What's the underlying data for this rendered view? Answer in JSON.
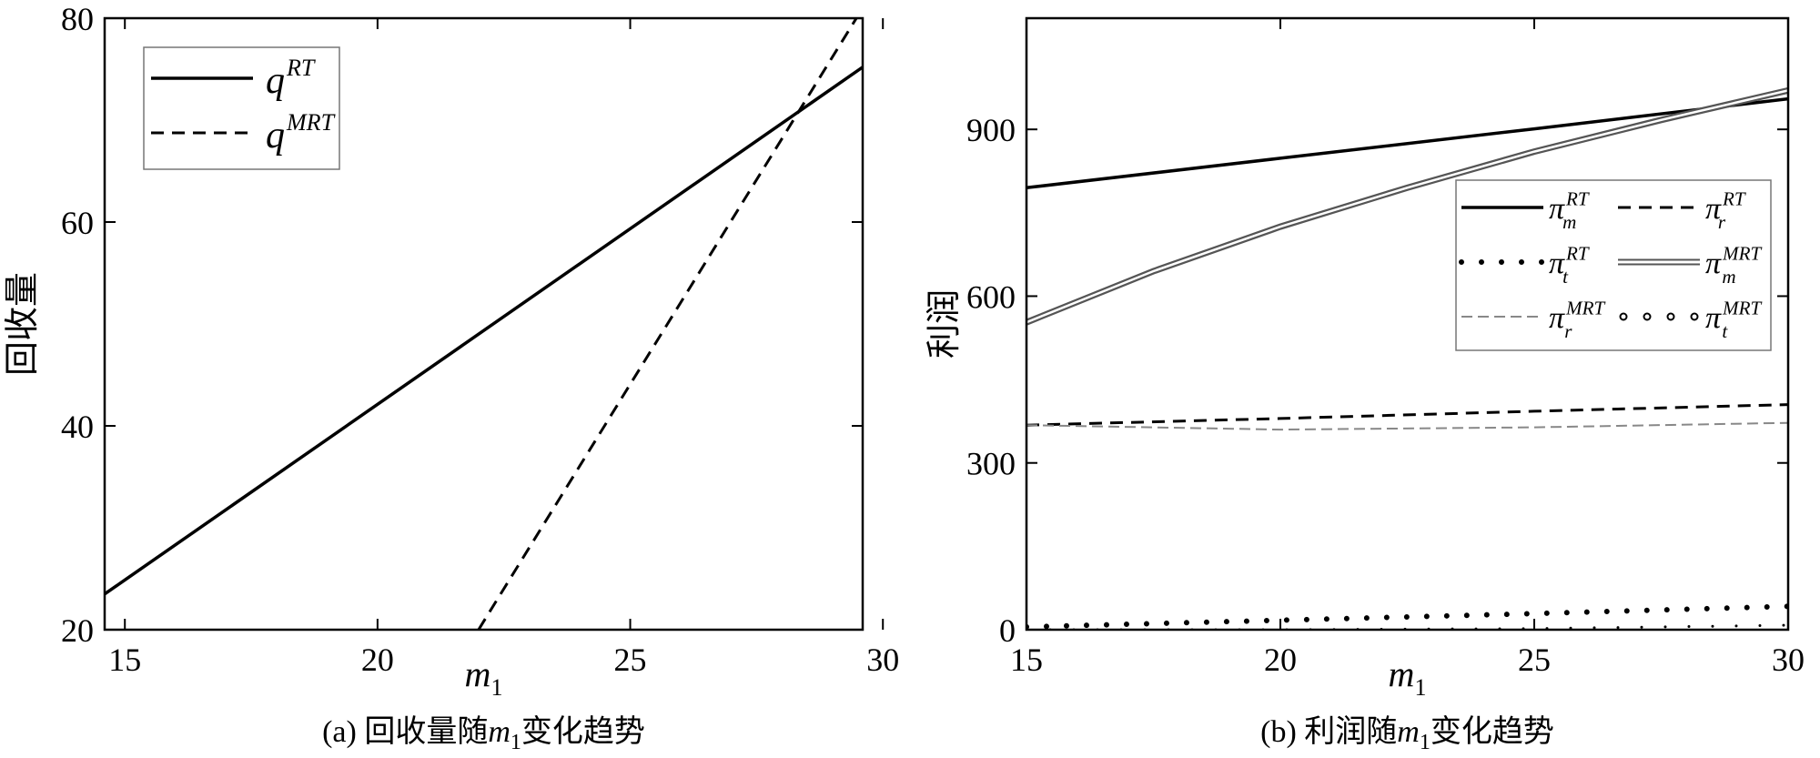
{
  "chart_data": [
    {
      "id": "a",
      "type": "line",
      "caption": "(a) 回收量随m1变化趋势",
      "xlabel": "m1",
      "ylabel": "回收量",
      "xlim": [
        14.6,
        29.6
      ],
      "ylim": [
        20,
        80
      ],
      "xticks": [
        15,
        20,
        25,
        30
      ],
      "yticks": [
        20,
        40,
        60,
        80
      ],
      "legend_position": "top-left",
      "grid": false,
      "series": [
        {
          "name": "q^RT",
          "base": "q",
          "sup": "RT",
          "style": "solid",
          "color": "#000000",
          "x": [
            14.6,
            29.6
          ],
          "y": [
            23.5,
            75.2
          ]
        },
        {
          "name": "q^MRT",
          "base": "q",
          "sup": "MRT",
          "style": "dashed",
          "color": "#000000",
          "x": [
            22.0,
            29.6
          ],
          "y": [
            20.0,
            81.0
          ]
        }
      ]
    },
    {
      "id": "b",
      "type": "line",
      "caption": "(b) 利润随m1变化趋势",
      "xlabel": "m1",
      "ylabel": "利润",
      "xlim": [
        15,
        30
      ],
      "ylim": [
        0,
        1100
      ],
      "xticks": [
        15,
        20,
        25,
        30
      ],
      "yticks": [
        0,
        300,
        600,
        900
      ],
      "legend_position": "right",
      "grid": false,
      "series": [
        {
          "name": "π_m^RT",
          "base": "π",
          "sub": "m",
          "sup": "RT",
          "style": "solid",
          "color": "#000000",
          "x": [
            15,
            20,
            25,
            30
          ],
          "y": [
            795,
            848,
            901,
            955
          ]
        },
        {
          "name": "π_r^RT",
          "base": "π",
          "sub": "r",
          "sup": "RT",
          "style": "dashed",
          "color": "#000000",
          "x": [
            15,
            20,
            25,
            30
          ],
          "y": [
            368,
            380,
            393,
            405
          ]
        },
        {
          "name": "π_t^RT",
          "base": "π",
          "sub": "t",
          "sup": "RT",
          "style": "dotted",
          "color": "#000000",
          "x": [
            15,
            20,
            25,
            30
          ],
          "y": [
            5,
            17,
            29,
            42
          ]
        },
        {
          "name": "π_m^MRT",
          "base": "π",
          "sub": "m",
          "sup": "MRT",
          "style": "double",
          "color": "#555555",
          "x": [
            15,
            17.5,
            20,
            22.5,
            25,
            27.5,
            30
          ],
          "y": [
            553,
            645,
            725,
            795,
            860,
            917,
            970
          ]
        },
        {
          "name": "π_r^MRT",
          "base": "π",
          "sub": "r",
          "sup": "MRT",
          "style": "dashed-gray",
          "color": "#888888",
          "x": [
            15,
            20,
            25,
            30
          ],
          "y": [
            368,
            360,
            364,
            372
          ]
        },
        {
          "name": "π_t^MRT",
          "base": "π",
          "sub": "t",
          "sup": "MRT",
          "style": "circles",
          "color": "#000000",
          "x": [
            15,
            20,
            25,
            30
          ],
          "y": [
            0,
            0,
            2,
            8
          ]
        }
      ]
    }
  ]
}
